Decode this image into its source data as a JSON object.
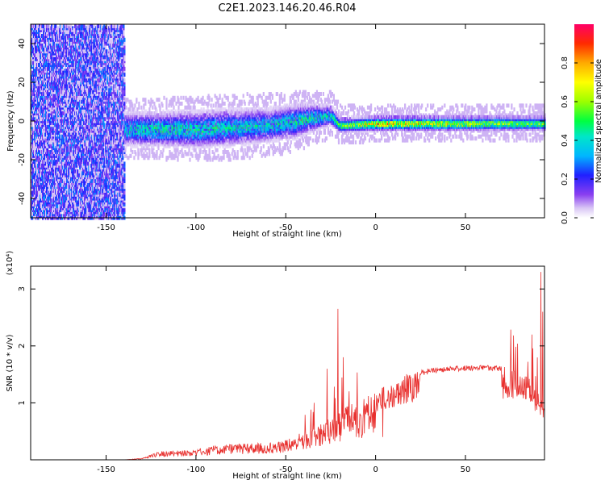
{
  "title": "C2E1.2023.146.20.46.R04",
  "chart_data": [
    {
      "type": "heatmap",
      "xlabel": "Height of straight line (km)",
      "ylabel": "Frequency (Hz)",
      "xlim": [
        -192,
        94
      ],
      "ylim": [
        -50,
        50
      ],
      "x_ticks": [
        -150,
        -100,
        -50,
        0,
        50
      ],
      "y_ticks": [
        -40,
        -20,
        0,
        20,
        40
      ],
      "colorbar": {
        "label": "Normalized spectral amplitude",
        "range": [
          0,
          1
        ],
        "ticks": [
          0.0,
          0.2,
          0.4,
          0.6,
          0.8
        ]
      },
      "features": [
        {
          "region": "noise",
          "x_range": [
            -192,
            -140
          ],
          "y_range": [
            -50,
            50
          ],
          "amplitude": 0.2
        },
        {
          "region": "band",
          "x": [
            -140,
            -120,
            -100,
            -80,
            -60,
            -45,
            -35,
            -25,
            -20,
            0,
            50,
            94
          ],
          "center_freq": [
            -4,
            -4,
            -4,
            -3,
            -2,
            0,
            2,
            3,
            -2,
            -1,
            -1,
            -1
          ],
          "width": [
            10,
            10,
            11,
            11,
            10,
            10,
            8,
            6,
            4,
            4,
            4,
            4
          ],
          "peak_amplitude": [
            0.45,
            0.5,
            0.5,
            0.45,
            0.45,
            0.5,
            0.5,
            0.45,
            0.6,
            0.85,
            0.7,
            0.6
          ]
        }
      ]
    },
    {
      "type": "line",
      "xlabel": "Height of straight line (km)",
      "ylabel": "SNR (10 * v/v)",
      "y_multiplier_label": "(x10⁴)",
      "xlim": [
        -192,
        94
      ],
      "ylim": [
        0,
        3.4
      ],
      "x_ticks": [
        -150,
        -100,
        -50,
        0,
        50
      ],
      "y_ticks": [
        1,
        2,
        3
      ],
      "color": "#e8302e",
      "envelope": {
        "x": [
          -192,
          -140,
          -130,
          -120,
          -100,
          -90,
          -80,
          -60,
          -50,
          -40,
          -30,
          -20,
          -10,
          0,
          10,
          20,
          30,
          40,
          50,
          60,
          70,
          75,
          80,
          85,
          90,
          94
        ],
        "y": [
          0.0,
          0.0,
          0.03,
          0.15,
          0.18,
          0.25,
          0.28,
          0.3,
          0.35,
          0.5,
          0.65,
          0.9,
          1.05,
          1.2,
          1.4,
          1.55,
          1.6,
          1.65,
          1.66,
          1.67,
          1.65,
          1.6,
          1.55,
          1.45,
          1.2,
          1.0
        ]
      },
      "spikes": [
        {
          "x": -21,
          "y": 2.65
        },
        {
          "x": -27,
          "y": 1.6
        },
        {
          "x": -18,
          "y": 1.8
        },
        {
          "x": 4,
          "y": 0.4
        },
        {
          "x": 87,
          "y": 2.2
        },
        {
          "x": 92,
          "y": 3.3
        },
        {
          "x": 93,
          "y": 2.6
        }
      ]
    }
  ]
}
